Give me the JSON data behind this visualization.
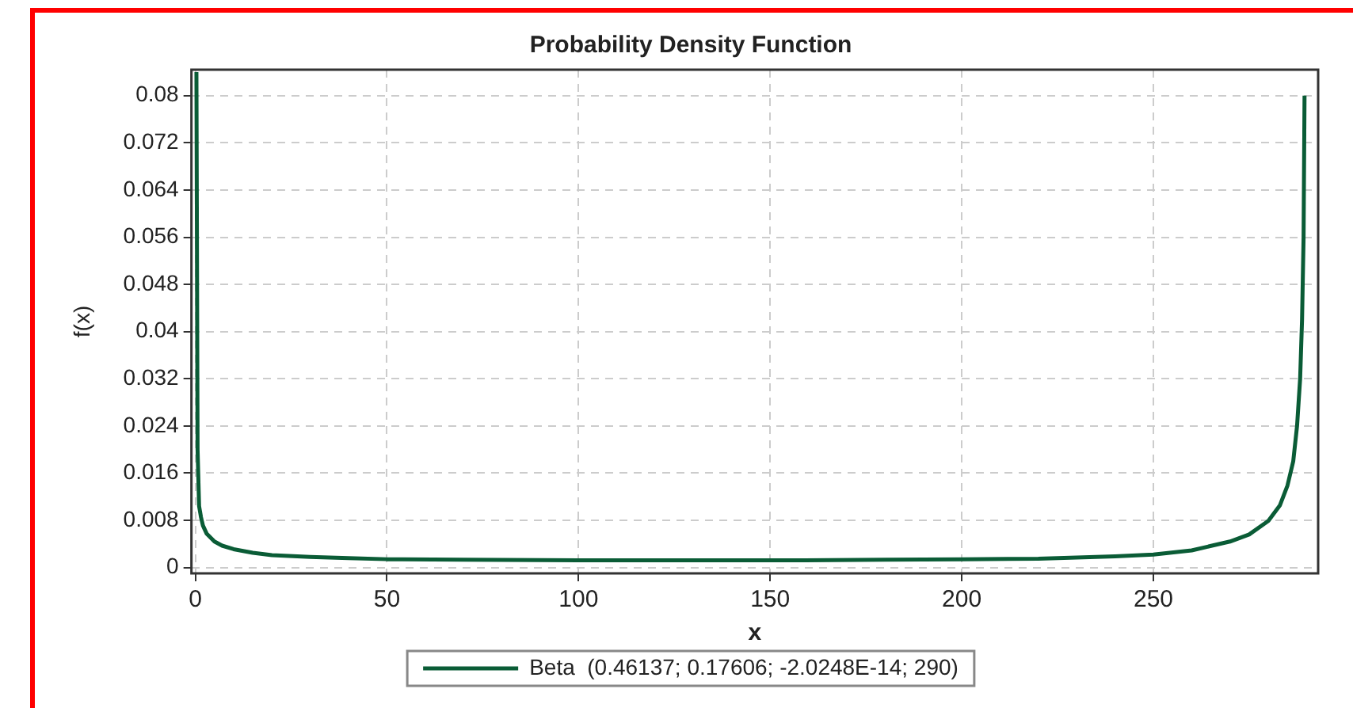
{
  "chart_data": {
    "type": "line",
    "title": "Probability Density Function",
    "xlabel": "x",
    "ylabel": "f(x)",
    "xlim": [
      -1,
      293
    ],
    "xticks": [
      0,
      50,
      100,
      150,
      200,
      250
    ],
    "ylim": [
      -0.001,
      0.0844
    ],
    "yticks": [
      0,
      0.008,
      0.016,
      0.024,
      0.032,
      0.04,
      0.048,
      0.056,
      0.064,
      0.072,
      0.08
    ],
    "grid": true,
    "legend": "bottom",
    "marker": "none",
    "line_style": "solid",
    "series": [
      {
        "name": "Beta  (0.46137; 0.17606; -2.0248E-14; 290)",
        "color": "#0a5c36",
        "x": [
          0.3,
          0.6,
          1,
          1.5,
          2,
          3,
          5,
          7,
          10,
          15,
          20,
          30,
          40,
          50,
          70,
          100,
          130,
          150,
          180,
          200,
          220,
          240,
          250,
          260,
          270,
          275,
          280,
          283,
          285,
          286.5,
          287.5,
          288.3,
          288.8,
          289.2,
          289.45
        ],
        "values": [
          0.084,
          0.02,
          0.0104,
          0.0085,
          0.0071,
          0.0057,
          0.0044,
          0.0037,
          0.0031,
          0.0025,
          0.0021,
          0.0018,
          0.0016,
          0.0014,
          0.0013,
          0.0012,
          0.0012,
          0.0012,
          0.0013,
          0.0014,
          0.0015,
          0.0019,
          0.0022,
          0.0029,
          0.0044,
          0.0056,
          0.0079,
          0.0105,
          0.0139,
          0.018,
          0.024,
          0.032,
          0.042,
          0.056,
          0.08
        ]
      }
    ]
  }
}
